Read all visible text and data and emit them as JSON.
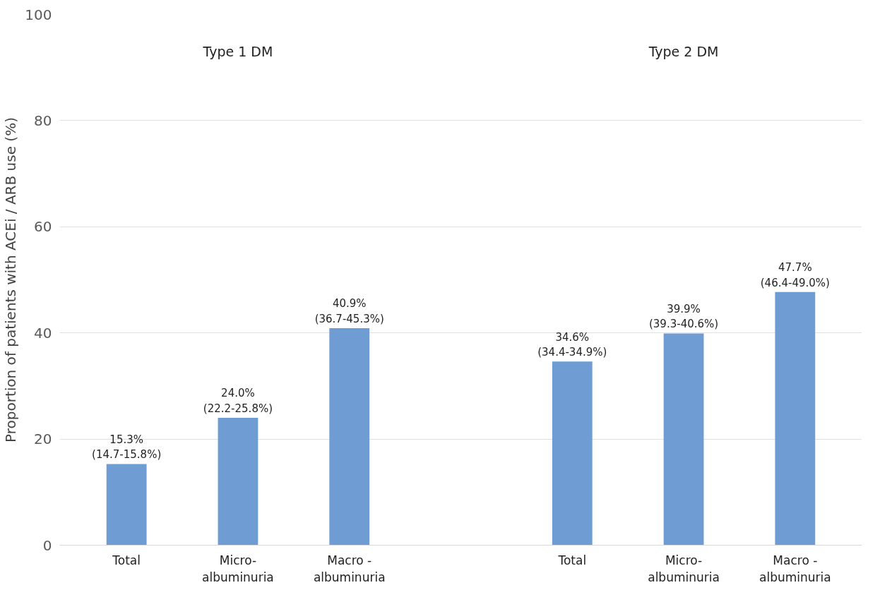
{
  "chart_data": {
    "type": "bar",
    "ylabel": "Proportion of patients with ACEi / ARB use (%)",
    "categories": [
      "Total",
      "Micro-\nalbuminuria",
      "Macro -\nalbuminuria",
      null,
      "Total",
      "Micro-\nalbuminuria",
      "Macro -\nalbuminuria"
    ],
    "values": [
      15.3,
      24.0,
      40.9,
      null,
      34.6,
      39.9,
      47.7
    ],
    "value_labels": [
      "15.3%\n(14.7-15.8%)",
      "24.0%\n(22.2-25.8%)",
      "40.9%\n(36.7-45.3%)",
      null,
      "34.6%\n(34.4-34.9%)",
      "39.9%\n(39.3-40.6%)",
      "47.7%\n(46.4-49.0%)"
    ],
    "color": "#6f9dd3",
    "ylim": [
      0,
      100
    ],
    "yticks": [
      0,
      20,
      40,
      60,
      80,
      100
    ],
    "grid": "y",
    "annotations": [
      "Type 1 DM",
      "Type 2 DM"
    ]
  }
}
